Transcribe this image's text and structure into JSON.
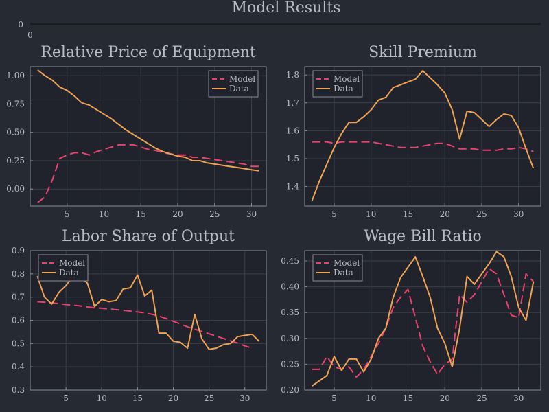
{
  "figure": {
    "title": "Model Results",
    "empty_axis_ticks": {
      "y": "0",
      "x": "0"
    }
  },
  "colors": {
    "background": "#262a33",
    "plot_bg": "#20232b",
    "model": "#e8436f",
    "data": "#f0a355",
    "text": "#b9bcc4"
  },
  "chart_data": [
    {
      "type": "line",
      "title": "Relative Price of Equipment",
      "xlim": [
        0,
        32
      ],
      "ylim": [
        -0.15,
        1.08
      ],
      "xticks": [
        5,
        10,
        15,
        20,
        25,
        30
      ],
      "yticks": [
        0,
        0.25,
        0.5,
        0.75,
        1.0
      ],
      "ytick_labels": [
        "0.00",
        "0.25",
        "0.50",
        "0.75",
        "1.00"
      ],
      "grid": true,
      "legend_position": "top-right",
      "series": [
        {
          "name": "Model",
          "style": "dashed",
          "x": [
            1,
            2,
            3,
            4,
            5,
            6,
            7,
            8,
            9,
            10,
            11,
            12,
            13,
            14,
            15,
            16,
            17,
            18,
            19,
            20,
            21,
            22,
            23,
            24,
            25,
            26,
            27,
            28,
            29,
            30,
            31
          ],
          "y": [
            -0.12,
            -0.07,
            0.08,
            0.27,
            0.3,
            0.32,
            0.32,
            0.3,
            0.33,
            0.35,
            0.37,
            0.39,
            0.39,
            0.39,
            0.37,
            0.35,
            0.34,
            0.32,
            0.31,
            0.3,
            0.3,
            0.28,
            0.28,
            0.27,
            0.26,
            0.25,
            0.24,
            0.23,
            0.22,
            0.2,
            0.2
          ]
        },
        {
          "name": "Data",
          "style": "solid",
          "x": [
            1,
            2,
            3,
            4,
            5,
            6,
            7,
            8,
            9,
            10,
            11,
            12,
            13,
            14,
            15,
            16,
            17,
            18,
            19,
            20,
            21,
            22,
            23,
            24,
            25,
            26,
            27,
            28,
            29,
            30,
            31
          ],
          "y": [
            1.05,
            1.0,
            0.96,
            0.9,
            0.87,
            0.82,
            0.76,
            0.74,
            0.7,
            0.66,
            0.62,
            0.57,
            0.52,
            0.48,
            0.44,
            0.4,
            0.36,
            0.33,
            0.31,
            0.29,
            0.28,
            0.25,
            0.25,
            0.23,
            0.22,
            0.21,
            0.2,
            0.19,
            0.18,
            0.17,
            0.16
          ]
        }
      ]
    },
    {
      "type": "line",
      "title": "Skill Premium",
      "xlim": [
        1,
        33
      ],
      "ylim": [
        1.33,
        1.83
      ],
      "xticks": [
        5,
        10,
        15,
        20,
        25,
        30
      ],
      "yticks": [
        1.4,
        1.5,
        1.6,
        1.7,
        1.8
      ],
      "ytick_labels": [
        "1.4",
        "1.5",
        "1.6",
        "1.7",
        "1.8"
      ],
      "grid": true,
      "legend_position": "top-left",
      "series": [
        {
          "name": "Model",
          "style": "dashed",
          "x": [
            2,
            3,
            4,
            5,
            6,
            7,
            8,
            9,
            10,
            11,
            12,
            13,
            14,
            15,
            16,
            17,
            18,
            19,
            20,
            21,
            22,
            23,
            24,
            25,
            26,
            27,
            28,
            29,
            30,
            31,
            32
          ],
          "y": [
            1.56,
            1.56,
            1.56,
            1.555,
            1.56,
            1.56,
            1.56,
            1.56,
            1.56,
            1.555,
            1.55,
            1.545,
            1.54,
            1.54,
            1.54,
            1.545,
            1.55,
            1.555,
            1.555,
            1.545,
            1.535,
            1.535,
            1.535,
            1.53,
            1.53,
            1.53,
            1.535,
            1.535,
            1.54,
            1.535,
            1.525
          ]
        },
        {
          "name": "Data",
          "style": "solid",
          "x": [
            2,
            3,
            4,
            5,
            6,
            7,
            8,
            9,
            10,
            11,
            12,
            13,
            14,
            15,
            16,
            17,
            18,
            19,
            20,
            21,
            22,
            23,
            24,
            25,
            26,
            27,
            28,
            29,
            30,
            31,
            32
          ],
          "y": [
            1.35,
            1.42,
            1.48,
            1.54,
            1.59,
            1.63,
            1.63,
            1.65,
            1.675,
            1.71,
            1.72,
            1.755,
            1.765,
            1.775,
            1.785,
            1.815,
            1.79,
            1.765,
            1.735,
            1.675,
            1.57,
            1.67,
            1.665,
            1.64,
            1.615,
            1.64,
            1.66,
            1.655,
            1.61,
            1.535,
            1.465
          ]
        }
      ]
    },
    {
      "type": "line",
      "title": "Labor Share of Output",
      "xlim": [
        0,
        33
      ],
      "ylim": [
        0.3,
        0.9
      ],
      "xticks": [
        5,
        10,
        15,
        20,
        25,
        30
      ],
      "yticks": [
        0.3,
        0.4,
        0.5,
        0.6,
        0.7,
        0.8,
        0.9
      ],
      "ytick_labels": [
        "0.3",
        "0.4",
        "0.5",
        "0.6",
        "0.7",
        "0.8",
        "0.9"
      ],
      "grid": true,
      "legend_position": "top-left",
      "series": [
        {
          "name": "Model",
          "style": "dashed",
          "x": [
            1,
            2,
            3,
            4,
            5,
            6,
            7,
            8,
            9,
            10,
            11,
            12,
            13,
            14,
            15,
            16,
            17,
            18,
            19,
            20,
            21,
            22,
            23,
            24,
            25,
            26,
            27,
            28,
            29,
            30,
            31
          ],
          "y": [
            0.68,
            0.678,
            0.675,
            0.672,
            0.668,
            0.665,
            0.662,
            0.658,
            0.654,
            0.652,
            0.649,
            0.646,
            0.643,
            0.64,
            0.636,
            0.632,
            0.626,
            0.618,
            0.608,
            0.596,
            0.584,
            0.572,
            0.562,
            0.552,
            0.542,
            0.532,
            0.522,
            0.512,
            0.502,
            0.49,
            0.48
          ]
        },
        {
          "name": "Data",
          "style": "solid",
          "x": [
            1,
            2,
            3,
            4,
            5,
            6,
            7,
            8,
            9,
            10,
            11,
            12,
            13,
            14,
            15,
            16,
            17,
            18,
            19,
            20,
            21,
            22,
            23,
            24,
            25,
            26,
            27,
            28,
            29,
            30,
            31,
            32
          ],
          "y": [
            0.79,
            0.7,
            0.67,
            0.72,
            0.75,
            0.79,
            0.79,
            0.76,
            0.66,
            0.69,
            0.68,
            0.685,
            0.735,
            0.74,
            0.795,
            0.705,
            0.73,
            0.545,
            0.545,
            0.51,
            0.505,
            0.48,
            0.625,
            0.52,
            0.475,
            0.48,
            0.495,
            0.5,
            0.53,
            0.535,
            0.54,
            0.51
          ]
        }
      ]
    },
    {
      "type": "line",
      "title": "Wage Bill Ratio",
      "xlim": [
        1,
        33
      ],
      "ylim": [
        0.2,
        0.47
      ],
      "xticks": [
        5,
        10,
        15,
        20,
        25,
        30
      ],
      "yticks": [
        0.2,
        0.25,
        0.3,
        0.35,
        0.4,
        0.45
      ],
      "ytick_labels": [
        "0.20",
        "0.25",
        "0.30",
        "0.35",
        "0.40",
        "0.45"
      ],
      "grid": true,
      "legend_position": "top-left",
      "series": [
        {
          "name": "Model",
          "style": "dashed",
          "x": [
            2,
            3,
            4,
            5,
            6,
            7,
            8,
            9,
            10,
            11,
            12,
            13,
            14,
            15,
            16,
            17,
            18,
            19,
            20,
            21,
            22,
            23,
            24,
            25,
            26,
            27,
            28,
            29,
            30,
            31,
            32
          ],
          "y": [
            0.24,
            0.24,
            0.265,
            0.245,
            0.24,
            0.245,
            0.225,
            0.24,
            0.265,
            0.29,
            0.32,
            0.36,
            0.38,
            0.395,
            0.34,
            0.285,
            0.255,
            0.23,
            0.25,
            0.26,
            0.385,
            0.37,
            0.385,
            0.41,
            0.435,
            0.425,
            0.385,
            0.345,
            0.34,
            0.425,
            0.41
          ]
        },
        {
          "name": "Data",
          "style": "solid",
          "x": [
            2,
            3,
            4,
            5,
            6,
            7,
            8,
            9,
            10,
            11,
            12,
            13,
            14,
            15,
            16,
            17,
            18,
            19,
            20,
            21,
            22,
            23,
            24,
            25,
            26,
            27,
            28,
            29,
            30,
            31,
            32
          ],
          "y": [
            0.208,
            0.218,
            0.228,
            0.265,
            0.238,
            0.26,
            0.26,
            0.235,
            0.26,
            0.3,
            0.32,
            0.38,
            0.418,
            0.438,
            0.458,
            0.42,
            0.38,
            0.32,
            0.29,
            0.245,
            0.32,
            0.42,
            0.405,
            0.425,
            0.445,
            0.468,
            0.458,
            0.42,
            0.36,
            0.335,
            0.41
          ]
        }
      ]
    }
  ]
}
